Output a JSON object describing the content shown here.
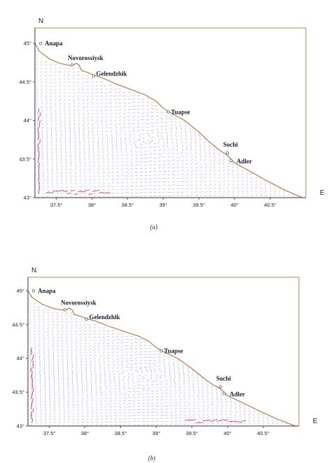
{
  "panels": [
    {
      "id": "a",
      "caption": "(a)",
      "north_label": "N",
      "east_label": "E",
      "lat_ticks": [
        "45°",
        "44.5°",
        "44°",
        "43.5°",
        "43°"
      ],
      "lon_ticks": [
        "37.5°",
        "38°",
        "38.5°",
        "39°",
        "39.5°",
        "40°",
        "40.5°"
      ],
      "cities": [
        {
          "name": "Anapa"
        },
        {
          "name": "Novorossiysk"
        },
        {
          "name": "Gelendzhik"
        },
        {
          "name": "Tuapse"
        },
        {
          "name": "Sochi"
        },
        {
          "name": "Adler"
        }
      ]
    },
    {
      "id": "b",
      "caption": "(b)",
      "north_label": "N",
      "east_label": "E",
      "lat_ticks": [
        "45°",
        "44.5°",
        "44°",
        "43.5°",
        "43°"
      ],
      "lon_ticks": [
        "37.5°",
        "38°",
        "38.5°",
        "39°",
        "39.5°",
        "40°",
        "40.5°"
      ],
      "cities": [
        {
          "name": "Anapa"
        },
        {
          "name": "Novorossiysk"
        },
        {
          "name": "Gelendzhik"
        },
        {
          "name": "Tuapse"
        },
        {
          "name": "Sochi"
        },
        {
          "name": "Adler"
        }
      ]
    }
  ],
  "colors": {
    "coastline": "#b8865a",
    "frame": "#333333",
    "vectors": "#6a6fb8",
    "strong_vectors": "#c0206a"
  }
}
